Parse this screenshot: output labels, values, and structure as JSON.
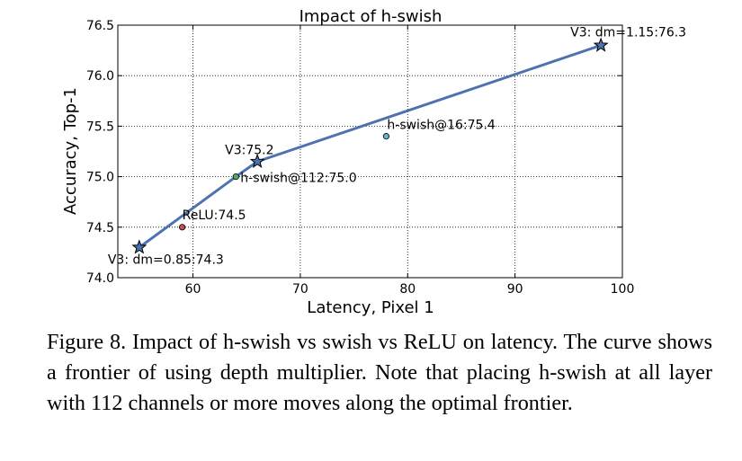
{
  "chart_data": {
    "type": "line",
    "title": "Impact of h-swish",
    "xlabel": "Latency, Pixel 1",
    "ylabel": "Accuracy, Top-1",
    "xlim": [
      53,
      100
    ],
    "ylim": [
      74.0,
      76.5
    ],
    "x_ticks": [
      "60",
      "70",
      "80",
      "90",
      "100"
    ],
    "y_ticks": [
      "74.0",
      "74.5",
      "75.0",
      "75.5",
      "76.0",
      "76.5"
    ],
    "grid": "dotted",
    "line_color": "#4c72b0",
    "frontier": [
      {
        "x": 55,
        "y": 74.3,
        "label": "V3: dm=0.85:74.3"
      },
      {
        "x": 64,
        "y": 75.0
      },
      {
        "x": 66,
        "y": 75.15,
        "label": "V3:75.2"
      },
      {
        "x": 98,
        "y": 76.3,
        "label": "V3: dm=1.15:76.3"
      }
    ],
    "points": [
      {
        "x": 59,
        "y": 74.5,
        "label": "ReLU:74.5",
        "color": "#c44e52"
      },
      {
        "x": 64,
        "y": 75.0,
        "label": "h-swish@112:75.0",
        "color": "#55a868"
      },
      {
        "x": 78,
        "y": 75.4,
        "label": "h-swish@16:75.4",
        "color": "#64b5cd"
      }
    ]
  },
  "caption": "Figure 8. Impact of h-swish vs swish vs ReLU on latency. The curve shows a frontier of using depth multiplier. Note that placing h-swish at all layer with 112 channels or more moves along the optimal frontier."
}
